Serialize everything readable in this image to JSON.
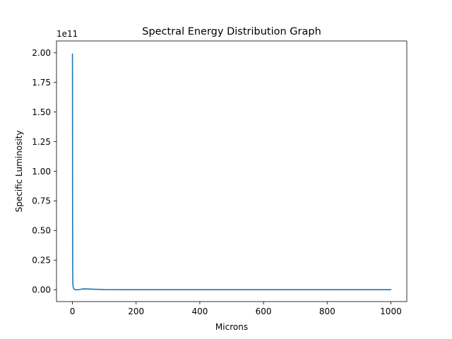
{
  "chart_data": {
    "type": "line",
    "title": "Spectral Energy Distribution Graph",
    "xlabel": "Microns",
    "ylabel": "Specific Luminosity",
    "y_offset_label": "1e11",
    "y_scale": 100000000000.0,
    "xlim": [
      -50,
      1050
    ],
    "ylim": [
      -0.1,
      2.1
    ],
    "x_ticks": [
      0,
      200,
      400,
      600,
      800,
      1000
    ],
    "x_tick_labels": [
      "0",
      "200",
      "400",
      "600",
      "800",
      "1000"
    ],
    "y_ticks": [
      0.0,
      0.25,
      0.5,
      0.75,
      1.0,
      1.25,
      1.5,
      1.75,
      2.0
    ],
    "y_tick_labels": [
      "0.00",
      "0.25",
      "0.50",
      "0.75",
      "1.00",
      "1.25",
      "1.50",
      "1.75",
      "2.00"
    ],
    "grid": false,
    "legend": "none",
    "colors": {
      "line": "#1f77b4",
      "axes": "#000000",
      "background": "#ffffff"
    },
    "series": [
      {
        "x": [
          0.1,
          0.3,
          0.5,
          0.7,
          1,
          1.5,
          2,
          3,
          5,
          8,
          12,
          20,
          30,
          40,
          60,
          80,
          100,
          150,
          200,
          300,
          400,
          500,
          600,
          700,
          800,
          900,
          1000
        ],
        "y": [
          1.99,
          1.6,
          0.7,
          0.3,
          0.12,
          0.05,
          0.03,
          0.015,
          0.005,
          0.001,
          -0.001,
          0.0,
          0.006,
          0.007,
          0.005,
          0.003,
          0.001,
          0.0005,
          0.0003,
          0.0001,
          0.0,
          0.0,
          0.0,
          0.0,
          0.0,
          0.0,
          0.0
        ]
      }
    ]
  }
}
